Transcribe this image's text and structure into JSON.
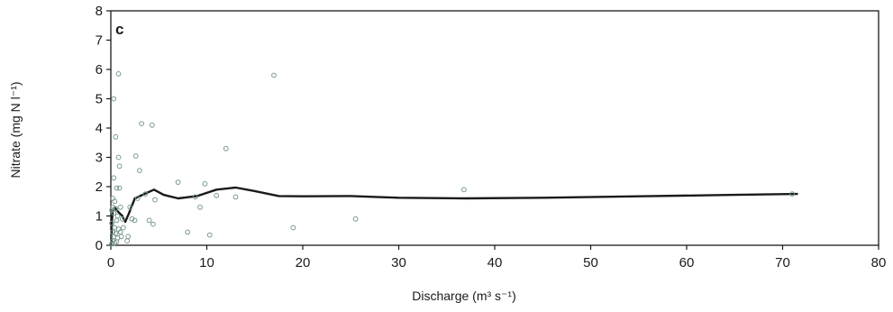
{
  "chart_data": {
    "type": "scatter",
    "panel_label": "c",
    "xlabel": "Discharge (m³ s⁻¹)",
    "ylabel": "Nitrate (mg N l⁻¹)",
    "xlim": [
      0,
      80
    ],
    "ylim": [
      0,
      8
    ],
    "x_ticks": [
      0,
      10,
      20,
      30,
      40,
      50,
      60,
      70,
      80
    ],
    "y_ticks": [
      0,
      1,
      2,
      3,
      4,
      5,
      6,
      7,
      8
    ],
    "grid": false,
    "marker_color": "#7a9a8c",
    "line_color": "#1a1a1a",
    "series": [
      {
        "kind": "points",
        "points": [
          [
            0.3,
            5.0
          ],
          [
            0.8,
            5.85
          ],
          [
            0.5,
            3.7
          ],
          [
            0.8,
            3.0
          ],
          [
            0.9,
            2.7
          ],
          [
            0.3,
            2.3
          ],
          [
            0.6,
            1.95
          ],
          [
            0.9,
            1.95
          ],
          [
            0.2,
            1.6
          ],
          [
            0.4,
            1.5
          ],
          [
            0.2,
            1.3
          ],
          [
            0.5,
            1.25
          ],
          [
            0.1,
            1.2
          ],
          [
            0.3,
            1.1
          ],
          [
            0.7,
            1.0
          ],
          [
            1.0,
            1.3
          ],
          [
            0.6,
            0.85
          ],
          [
            1.2,
            0.9
          ],
          [
            0.1,
            0.75
          ],
          [
            0.4,
            0.6
          ],
          [
            0.8,
            0.55
          ],
          [
            0.2,
            0.45
          ],
          [
            0.5,
            0.4
          ],
          [
            1.0,
            0.45
          ],
          [
            0.3,
            0.3
          ],
          [
            0.7,
            0.25
          ],
          [
            1.1,
            0.3
          ],
          [
            0.2,
            0.15
          ],
          [
            0.6,
            0.12
          ],
          [
            0.1,
            0.05
          ],
          [
            0.4,
            0.08
          ],
          [
            1.3,
            0.6
          ],
          [
            1.7,
            0.15
          ],
          [
            1.8,
            0.3
          ],
          [
            2.0,
            1.3
          ],
          [
            2.2,
            0.9
          ],
          [
            2.5,
            0.85
          ],
          [
            2.6,
            3.05
          ],
          [
            2.8,
            1.6
          ],
          [
            3.0,
            2.55
          ],
          [
            3.2,
            4.15
          ],
          [
            3.6,
            1.75
          ],
          [
            4.0,
            0.85
          ],
          [
            4.3,
            4.1
          ],
          [
            4.4,
            0.72
          ],
          [
            4.6,
            1.55
          ],
          [
            7.0,
            2.15
          ],
          [
            8.0,
            0.45
          ],
          [
            8.8,
            1.65
          ],
          [
            9.3,
            1.3
          ],
          [
            9.8,
            2.1
          ],
          [
            10.3,
            0.35
          ],
          [
            11.0,
            1.7
          ],
          [
            12.0,
            3.3
          ],
          [
            13.0,
            1.65
          ],
          [
            17.0,
            5.8
          ],
          [
            19.0,
            0.6
          ],
          [
            25.5,
            0.9
          ],
          [
            36.8,
            1.9
          ],
          [
            71.0,
            1.75
          ]
        ]
      },
      {
        "kind": "line",
        "points": [
          [
            0.05,
            0.1
          ],
          [
            0.1,
            0.8
          ],
          [
            0.2,
            1.15
          ],
          [
            0.4,
            1.3
          ],
          [
            0.6,
            1.2
          ],
          [
            0.9,
            1.1
          ],
          [
            1.2,
            1.0
          ],
          [
            1.5,
            0.8
          ],
          [
            1.9,
            1.1
          ],
          [
            2.5,
            1.6
          ],
          [
            3.5,
            1.75
          ],
          [
            4.5,
            1.9
          ],
          [
            5.5,
            1.72
          ],
          [
            7.0,
            1.6
          ],
          [
            9.0,
            1.68
          ],
          [
            11.0,
            1.9
          ],
          [
            13.0,
            1.97
          ],
          [
            15.0,
            1.85
          ],
          [
            17.5,
            1.68
          ],
          [
            20.0,
            1.67
          ],
          [
            25.0,
            1.68
          ],
          [
            30.0,
            1.62
          ],
          [
            37.0,
            1.6
          ],
          [
            45.0,
            1.62
          ],
          [
            55.0,
            1.67
          ],
          [
            65.0,
            1.72
          ],
          [
            71.5,
            1.75
          ]
        ]
      }
    ]
  }
}
